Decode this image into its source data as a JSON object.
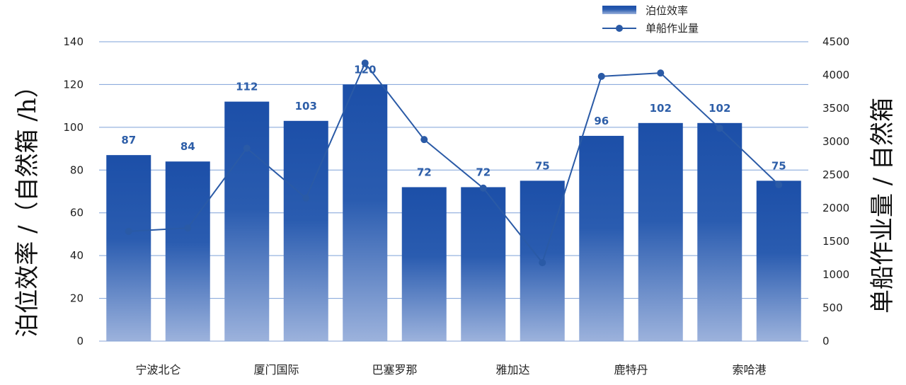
{
  "chart_data": {
    "type": "bar",
    "categories": [
      "宁波北仑",
      "",
      "厦门国际",
      "",
      "巴塞罗那",
      "",
      "雅加达",
      "",
      "鹿特丹",
      "",
      "索哈港",
      ""
    ],
    "series": [
      {
        "name": "泊位效率",
        "type": "bar",
        "axis": "left",
        "values": [
          87,
          84,
          112,
          103,
          120,
          72,
          72,
          75,
          96,
          102,
          102,
          75
        ]
      },
      {
        "name": "单船作业量",
        "type": "line",
        "axis": "right",
        "values": [
          1650,
          1700,
          2900,
          2150,
          4180,
          3030,
          2300,
          1180,
          3980,
          4030,
          3200,
          2350
        ]
      }
    ],
    "y_left": {
      "label": "泊位效率 /（自然箱 /h）",
      "ylim": [
        0,
        140
      ],
      "ticks": [
        0,
        20,
        40,
        60,
        80,
        100,
        120,
        140
      ]
    },
    "y_right": {
      "label": "单船作业量 / 自然箱",
      "ylim": [
        0,
        4500
      ],
      "ticks": [
        0,
        500,
        1000,
        1500,
        2000,
        2500,
        3000,
        3500,
        4000,
        4500
      ]
    },
    "legend_position": "top-right",
    "grid": true,
    "colors": {
      "bar_top": "#1c4fa8",
      "bar_bottom": "#9cb2dc",
      "line": "#2a5aa6",
      "grid": "#7ea0d8",
      "data_label": "#2d5ea8"
    }
  }
}
